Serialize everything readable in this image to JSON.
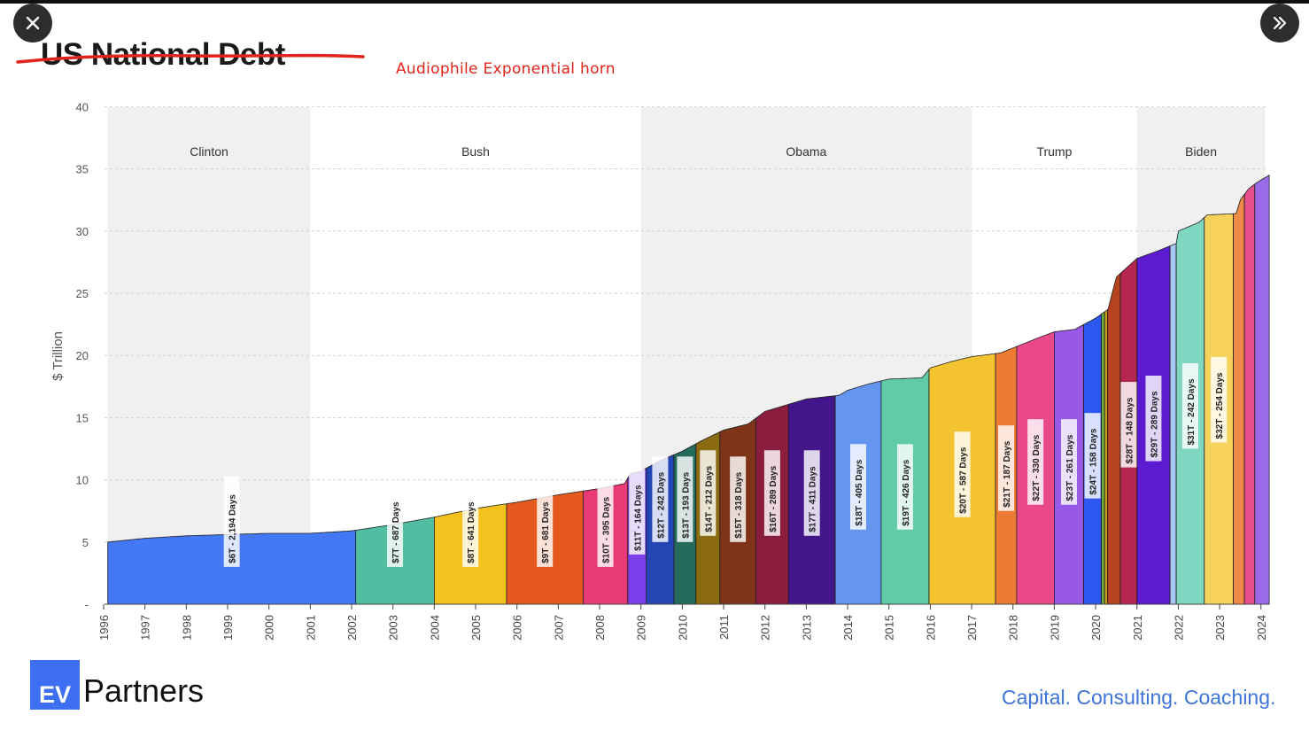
{
  "controls": {
    "close_icon": "close-icon",
    "next_icon": "double-chevron-right-icon"
  },
  "header": {
    "title": "US National Debt",
    "annotation": "Audiophile Exponential horn",
    "annotation_color": "#e0241b",
    "strike_color": "#e0241b"
  },
  "branding": {
    "logo_mark": "EV",
    "logo_word": "Partners",
    "tagline": "Capital. Consulting. Coaching.",
    "logo_color": "#3e6ef2",
    "tagline_color": "#3f74d8"
  },
  "chart_data": {
    "type": "area",
    "title": "",
    "xlabel": "",
    "ylabel": "$ Trillion",
    "xlim": [
      1996,
      2024.2
    ],
    "ylim": [
      0,
      40
    ],
    "yticks": [
      {
        "value": 0,
        "label": "-"
      },
      {
        "value": 5,
        "label": "5"
      },
      {
        "value": 10,
        "label": "10"
      },
      {
        "value": 15,
        "label": "15"
      },
      {
        "value": 20,
        "label": "20"
      },
      {
        "value": 25,
        "label": "25"
      },
      {
        "value": 30,
        "label": "30"
      },
      {
        "value": 35,
        "label": "35"
      },
      {
        "value": 40,
        "label": "40"
      }
    ],
    "xticks": [
      "1996",
      "1997",
      "1998",
      "1999",
      "2000",
      "2001",
      "2002",
      "2003",
      "2004",
      "2005",
      "2006",
      "2007",
      "2008",
      "2009",
      "2010",
      "2011",
      "2012",
      "2013",
      "2014",
      "2015",
      "2016",
      "2017",
      "2018",
      "2019",
      "2020",
      "2021",
      "2022",
      "2023",
      "2024"
    ],
    "grid": true,
    "presidencies": [
      {
        "name": "Clinton",
        "start": 1996.1,
        "end": 2001.0,
        "shaded": true
      },
      {
        "name": "Bush",
        "start": 2001.0,
        "end": 2009.0,
        "shaded": false
      },
      {
        "name": "Obama",
        "start": 2009.0,
        "end": 2017.0,
        "shaded": true
      },
      {
        "name": "Trump",
        "start": 2017.0,
        "end": 2021.0,
        "shaded": false
      },
      {
        "name": "Biden",
        "start": 2021.0,
        "end": 2024.1,
        "shaded": true
      }
    ],
    "debt_curve": [
      [
        1996.1,
        5.0
      ],
      [
        1997.0,
        5.3
      ],
      [
        1998.0,
        5.5
      ],
      [
        1999.0,
        5.6
      ],
      [
        2000.0,
        5.7
      ],
      [
        2001.0,
        5.7
      ],
      [
        2002.0,
        5.9
      ],
      [
        2003.0,
        6.4
      ],
      [
        2004.0,
        7.0
      ],
      [
        2005.0,
        7.7
      ],
      [
        2006.0,
        8.2
      ],
      [
        2007.0,
        8.8
      ],
      [
        2008.0,
        9.3
      ],
      [
        2008.6,
        9.7
      ],
      [
        2008.75,
        10.5
      ],
      [
        2009.0,
        10.7
      ],
      [
        2009.5,
        11.6
      ],
      [
        2010.0,
        12.3
      ],
      [
        2010.5,
        13.2
      ],
      [
        2011.0,
        14.0
      ],
      [
        2011.6,
        14.5
      ],
      [
        2012.0,
        15.5
      ],
      [
        2012.7,
        16.2
      ],
      [
        2013.0,
        16.5
      ],
      [
        2013.8,
        16.8
      ],
      [
        2014.0,
        17.2
      ],
      [
        2014.5,
        17.7
      ],
      [
        2015.0,
        18.1
      ],
      [
        2015.8,
        18.2
      ],
      [
        2016.0,
        19.0
      ],
      [
        2016.5,
        19.5
      ],
      [
        2017.0,
        19.9
      ],
      [
        2017.7,
        20.2
      ],
      [
        2018.0,
        20.6
      ],
      [
        2018.6,
        21.4
      ],
      [
        2019.0,
        21.9
      ],
      [
        2019.5,
        22.1
      ],
      [
        2020.0,
        23.0
      ],
      [
        2020.3,
        23.7
      ],
      [
        2020.4,
        25.0
      ],
      [
        2020.5,
        26.3
      ],
      [
        2021.0,
        27.8
      ],
      [
        2021.5,
        28.4
      ],
      [
        2021.95,
        29.0
      ],
      [
        2022.0,
        30.0
      ],
      [
        2022.5,
        30.7
      ],
      [
        2022.7,
        31.3
      ],
      [
        2023.4,
        31.4
      ],
      [
        2023.5,
        32.5
      ],
      [
        2023.7,
        33.4
      ],
      [
        2023.9,
        33.9
      ],
      [
        2024.2,
        34.5
      ]
    ],
    "segments": [
      {
        "label": "$6T - 2,194 Days",
        "start": 1996.1,
        "end": 2002.1,
        "color": "#4378f5",
        "label_y": 3
      },
      {
        "label": "$7T - 687 Days",
        "start": 2002.1,
        "end": 2004.0,
        "color": "#52bea1",
        "label_y": 3
      },
      {
        "label": "$8T - 641 Days",
        "start": 2004.0,
        "end": 2005.75,
        "color": "#f4c21f",
        "label_y": 3
      },
      {
        "label": "$9T - 681 Days",
        "start": 2005.75,
        "end": 2007.6,
        "color": "#e5591e",
        "label_y": 3
      },
      {
        "label": "$10T - 395 Days",
        "start": 2007.6,
        "end": 2008.68,
        "color": "#e83a76",
        "label_y": 3
      },
      {
        "label": "$11T - 164 Days",
        "start": 2008.68,
        "end": 2009.13,
        "color": "#7a3fe8",
        "label_y": 4
      },
      {
        "label": "$12T - 242 Days",
        "start": 2009.13,
        "end": 2009.8,
        "color": "#2346b5",
        "label_y": 5
      },
      {
        "label": "$13T - 193 Days",
        "start": 2009.8,
        "end": 2010.33,
        "color": "#256b5c",
        "label_y": 5
      },
      {
        "label": "$14T - 212 Days",
        "start": 2010.33,
        "end": 2010.91,
        "color": "#8b6b10",
        "label_y": 5.5
      },
      {
        "label": "$15T - 318 Days",
        "start": 2010.91,
        "end": 2011.78,
        "color": "#7f3318",
        "label_y": 5
      },
      {
        "label": "$16T - 289 Days",
        "start": 2011.78,
        "end": 2012.57,
        "color": "#8a1d3e",
        "label_y": 5.5
      },
      {
        "label": "$17T - 411 Days",
        "start": 2012.57,
        "end": 2013.7,
        "color": "#43168c",
        "label_y": 5.5
      },
      {
        "label": "$18T - 405 Days",
        "start": 2013.7,
        "end": 2014.81,
        "color": "#6495ef",
        "label_y": 6
      },
      {
        "label": "$19T - 426 Days",
        "start": 2014.81,
        "end": 2015.97,
        "color": "#61cba9",
        "label_y": 6
      },
      {
        "label": "$20T - 587 Days",
        "start": 2015.97,
        "end": 2017.58,
        "color": "#f4c430",
        "label_y": 7
      },
      {
        "label": "$21T - 187 Days",
        "start": 2017.58,
        "end": 2018.09,
        "color": "#ed7b34",
        "label_y": 7.5
      },
      {
        "label": "$22T - 330 Days",
        "start": 2018.09,
        "end": 2019.0,
        "color": "#e94889",
        "label_y": 8
      },
      {
        "label": "$23T - 261 Days",
        "start": 2019.0,
        "end": 2019.71,
        "color": "#9859e6",
        "label_y": 8
      },
      {
        "label": "$24T - 158 Days",
        "start": 2019.71,
        "end": 2020.14,
        "color": "#2e57f0",
        "label_y": 8.5
      },
      {
        "label": "",
        "start": 2020.14,
        "end": 2020.22,
        "color": "#6da83a",
        "label_y": 0
      },
      {
        "label": "",
        "start": 2020.22,
        "end": 2020.29,
        "color": "#d0a020",
        "label_y": 0
      },
      {
        "label": "",
        "start": 2020.29,
        "end": 2020.6,
        "color": "#b5431f",
        "label_y": 0
      },
      {
        "label": "$28T - 148 Days",
        "start": 2020.6,
        "end": 2021.0,
        "color": "#b52751",
        "label_y": 11
      },
      {
        "label": "$29T - 289 Days",
        "start": 2021.0,
        "end": 2021.8,
        "color": "#5c1bd1",
        "label_y": 11.5
      },
      {
        "label": "",
        "start": 2021.8,
        "end": 2021.95,
        "color": "#a9c8f2",
        "label_y": 0
      },
      {
        "label": "$31T - 242 Days",
        "start": 2021.95,
        "end": 2022.63,
        "color": "#7fd7c2",
        "label_y": 12.5
      },
      {
        "label": "$32T - 254 Days",
        "start": 2022.63,
        "end": 2023.33,
        "color": "#f6d25c",
        "label_y": 13
      },
      {
        "label": "",
        "start": 2023.33,
        "end": 2023.6,
        "color": "#ef8a47",
        "label_y": 0
      },
      {
        "label": "",
        "start": 2023.6,
        "end": 2023.85,
        "color": "#e5508c",
        "label_y": 0
      },
      {
        "label": "",
        "start": 2023.85,
        "end": 2024.2,
        "color": "#9b6be8",
        "label_y": 0
      }
    ]
  }
}
